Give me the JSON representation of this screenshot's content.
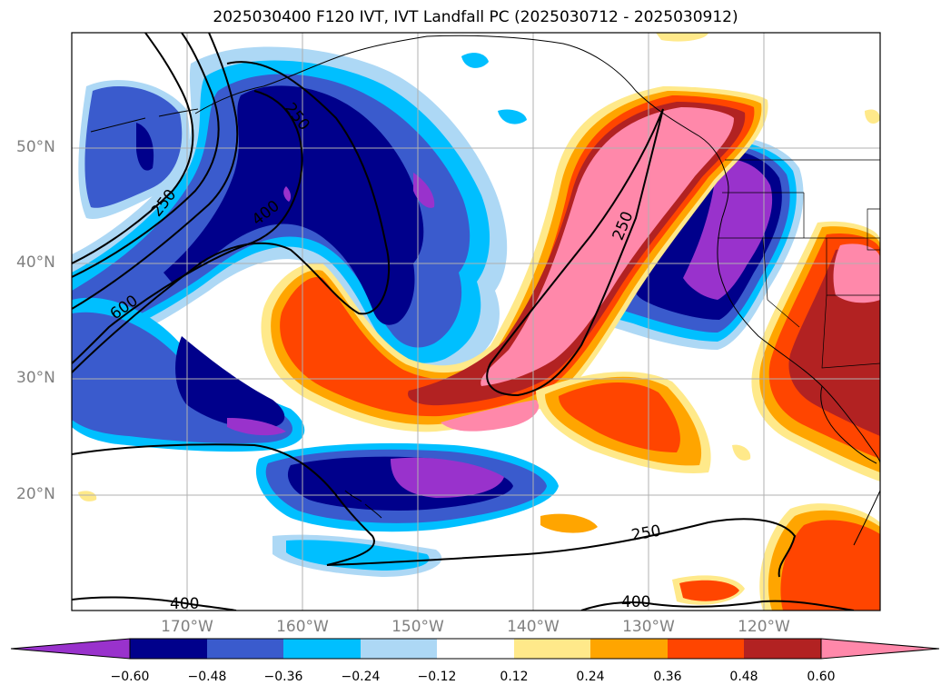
{
  "title": "2025030400 F120 IVT, IVT Landfall PC (2025030712 - 2025030912)",
  "lat_labels": [
    "50°N",
    "40°N",
    "30°N",
    "20°N"
  ],
  "lon_labels": [
    "170°W",
    "160°W",
    "150°W",
    "140°W",
    "130°W",
    "120°W"
  ],
  "contour_labels": [
    {
      "name": "contour-label-250-nw",
      "text": "250"
    },
    {
      "name": "contour-label-250-north",
      "text": "250"
    },
    {
      "name": "contour-label-400-north",
      "text": "400"
    },
    {
      "name": "contour-label-600-west",
      "text": "600"
    },
    {
      "name": "contour-label-250-coast",
      "text": "250"
    },
    {
      "name": "contour-label-250-south",
      "text": "250"
    },
    {
      "name": "contour-label-400-sw",
      "text": "400"
    },
    {
      "name": "contour-label-400-se",
      "text": "400"
    }
  ],
  "colorbar": {
    "labels": [
      "−0.60",
      "−0.48",
      "−0.36",
      "−0.24",
      "−0.12",
      "0.12",
      "0.24",
      "0.36",
      "0.48",
      "0.60"
    ],
    "colors": [
      "#9932cc",
      "#00008b",
      "#3a5bcd",
      "#00bfff",
      "#add8f5",
      "#ffffff",
      "#ffe98a",
      "#ffa500",
      "#ff4500",
      "#b22222",
      "#ff88aa"
    ]
  },
  "colors": {
    "neg_strong": "#9932cc",
    "neg_dark": "#00008b",
    "neg_mid": "#3a5bcd",
    "neg_light": "#00bfff",
    "neg_pale": "#add8f5",
    "pos_pale": "#ffe98a",
    "pos_light": "#ffa500",
    "pos_mid": "#ff4500",
    "pos_dark": "#b22222",
    "pos_strong": "#ff88aa"
  }
}
